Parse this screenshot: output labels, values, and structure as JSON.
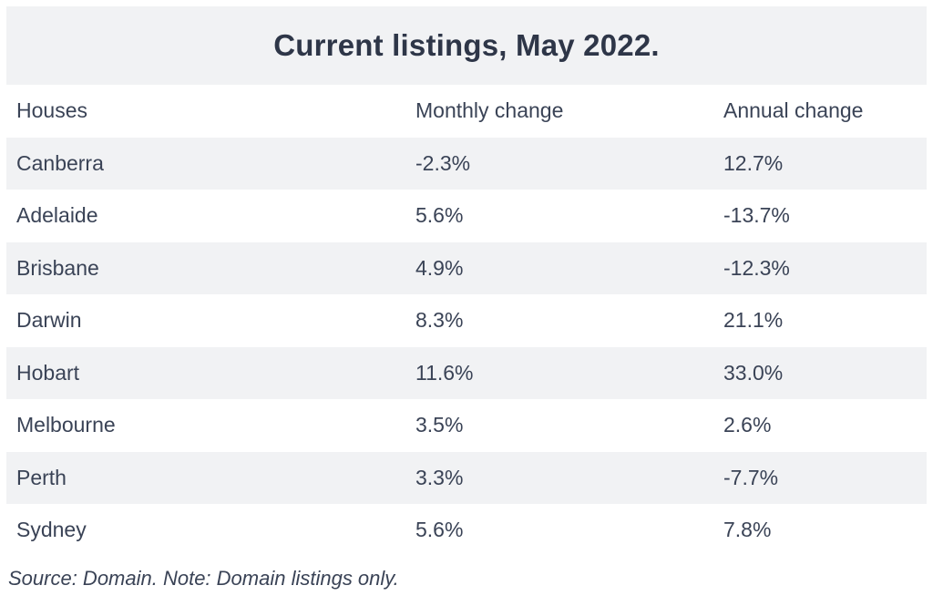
{
  "title": "Current listings, May 2022.",
  "table": {
    "headers": [
      "Houses",
      "Monthly change",
      "Annual change"
    ],
    "rows": [
      [
        "Canberra",
        "-2.3%",
        "12.7%"
      ],
      [
        "Adelaide",
        "5.6%",
        "-13.7%"
      ],
      [
        "Brisbane",
        "4.9%",
        "-12.3%"
      ],
      [
        "Darwin",
        "8.3%",
        "21.1%"
      ],
      [
        "Hobart",
        "11.6%",
        "33.0%"
      ],
      [
        "Melbourne",
        "3.5%",
        "2.6%"
      ],
      [
        "Perth",
        "3.3%",
        "-7.7%"
      ],
      [
        "Sydney",
        "5.6%",
        "7.8%"
      ]
    ]
  },
  "footer": {
    "source": "Source: Domain. Note: Domain listings only."
  },
  "colors": {
    "stripe": "#f1f2f4",
    "text": "#3a4356",
    "title": "#2e3648"
  }
}
